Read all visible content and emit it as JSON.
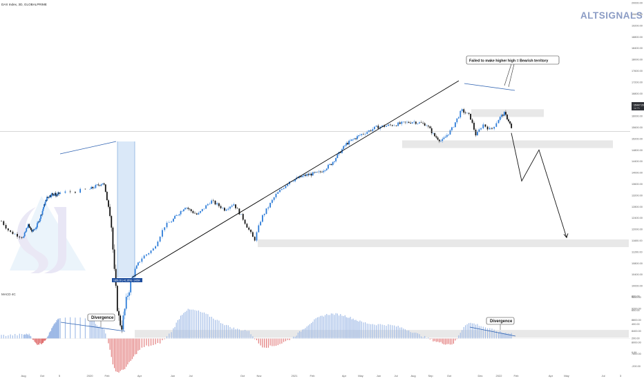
{
  "header": {
    "symbol": "DAX Index, 3D, GLOBALPRIME",
    "brand": "ALTSIGNALS",
    "brand_color": "#8a9bc4"
  },
  "colors": {
    "up": "#2b7bd8",
    "down": "#111111",
    "macd_pos": "#9db9e6",
    "macd_neg": "#e07070",
    "zone": "#e6e6e6",
    "highlight": "#bcd6f2",
    "trendline": "#000000",
    "wedge_line": "#2a5fb0"
  },
  "chart_data": [
    {
      "type": "candlestick",
      "title": "DAX Index, 3D, GLOBALPRIME",
      "x_tick_labels": [
        "Aug",
        "Oct",
        "5",
        "2020",
        "Feb",
        "Apr",
        "Jun",
        "Jul",
        "Oct",
        "Nov",
        "2021",
        "Feb",
        "Apr",
        "May",
        "Jun",
        "Jul",
        "Aug",
        "Sep",
        "Oct",
        "Dec",
        "2022",
        "Feb",
        "Apr",
        "May",
        "Jul",
        "3"
      ],
      "y_tick_labels": [
        "20000.00",
        "19600.00",
        "19200.00",
        "18800.00",
        "18400.00",
        "18000.00",
        "17600.00",
        "17200.00",
        "16800.00",
        "16400.00",
        "16000.00",
        "15600.00",
        "15200.00",
        "14800.00",
        "14400.00",
        "14000.00",
        "13600.00",
        "13200.00",
        "12800.00",
        "12400.00",
        "12000.00",
        "11600.00",
        "11200.00",
        "10800.00",
        "10400.00",
        "10000.00",
        "9600.00",
        "9200.00",
        "8800.00",
        "8400.00",
        "8000.00",
        "7600.00"
      ],
      "ylim": [
        7600,
        20000
      ],
      "series_points": [
        {
          "label": "Aug 2019",
          "close": 12000
        },
        {
          "label": "Oct 2019",
          "close": 12400
        },
        {
          "label": "Jan 2020",
          "close": 13300
        },
        {
          "label": "Feb 2020",
          "close": 13700
        },
        {
          "label": "Mar 2020",
          "close": 8400
        },
        {
          "label": "Jun 2020",
          "close": 12600
        },
        {
          "label": "Oct 2020",
          "close": 11600
        },
        {
          "label": "Jan 2021",
          "close": 13800
        },
        {
          "label": "Jun 2021",
          "close": 15500
        },
        {
          "label": "Aug 2021",
          "close": 15900
        },
        {
          "label": "Oct 2021",
          "close": 15200
        },
        {
          "label": "Nov 2021",
          "close": 16200
        },
        {
          "label": "Dec 2021",
          "close": 15400
        },
        {
          "label": "Jan 2022",
          "close": 15900
        },
        {
          "label": "Feb 2022",
          "close": 15400
        }
      ],
      "price_label": "15447.20",
      "price_sublabel": "1d 7h",
      "crash_label": "1855.26 (-41.95%) -14954",
      "annotations": {
        "callout": "Failed to make higher high = Bearish territory"
      },
      "projection": [
        {
          "label": "Feb 2022",
          "value": 15400
        },
        {
          "label": "Mar 2022",
          "value": 13700
        },
        {
          "label": "Apr 2022",
          "value": 14800
        },
        {
          "label": "May 2022",
          "value": 11700
        }
      ],
      "zones": [
        {
          "name": "resistance",
          "y_range": [
            16000,
            16200
          ]
        },
        {
          "name": "support-high",
          "y_range": [
            14900,
            15100
          ]
        },
        {
          "name": "support-mid",
          "y_range": [
            11400,
            11600
          ]
        },
        {
          "name": "support-low",
          "y_range": [
            8200,
            8400
          ]
        }
      ]
    },
    {
      "type": "bar",
      "title": "MACD 4C",
      "y_tick_labels": [
        "800.00",
        "600.00",
        "400.00",
        "200.00",
        "0.00",
        "-200.00",
        "-400.00",
        "-600.00"
      ],
      "ylim": [
        -600,
        800
      ],
      "annotations": [
        "Divergence",
        "Divergence"
      ],
      "phases": [
        {
          "label": "Aug 2019",
          "value": 60
        },
        {
          "label": "Sep 2019",
          "value": -80
        },
        {
          "label": "Jan 2020",
          "value": 300
        },
        {
          "label": "Feb 2020",
          "value": 150
        },
        {
          "label": "Mar 2020",
          "value": -480
        },
        {
          "label": "May 2020",
          "value": -100
        },
        {
          "label": "Jul 2020",
          "value": 410
        },
        {
          "label": "Oct 2020",
          "value": 120
        },
        {
          "label": "Nov 2020",
          "value": -120
        },
        {
          "label": "Mar 2021",
          "value": 350
        },
        {
          "label": "Jun 2021",
          "value": 200
        },
        {
          "label": "Oct 2021",
          "value": -80
        },
        {
          "label": "Nov 2021",
          "value": 220
        },
        {
          "label": "Jan 2022",
          "value": 80
        }
      ]
    }
  ]
}
